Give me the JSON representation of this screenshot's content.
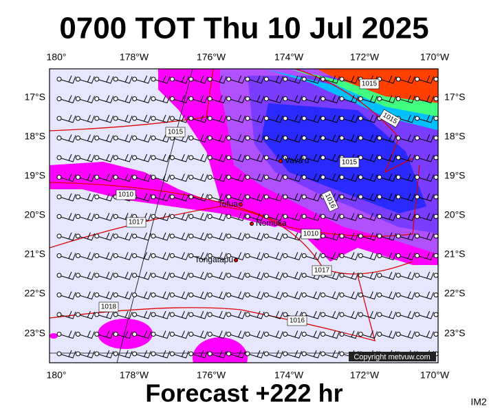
{
  "title": "0700 TOT Thu 10 Jul 2025",
  "map": {
    "lon_labels": [
      "180°",
      "178°W",
      "176°W",
      "174°W",
      "172°W",
      "170°W"
    ],
    "lat_labels": [
      "17°S",
      "18°S",
      "19°S",
      "20°S",
      "21°S",
      "22°S",
      "23°S"
    ],
    "places": [
      "Vava'u",
      "Tofua",
      "Nomuka",
      "Tongatapu"
    ],
    "isobar_labels": [
      "1015",
      "1015",
      "1015",
      "1015",
      "1016",
      "1010",
      "1017",
      "1010",
      "1017",
      "1018",
      "1016"
    ],
    "copyright": "Copyright metvuw.com"
  },
  "footer": {
    "forecast": "Forecast +222 hr",
    "image_id": "IM2"
  }
}
